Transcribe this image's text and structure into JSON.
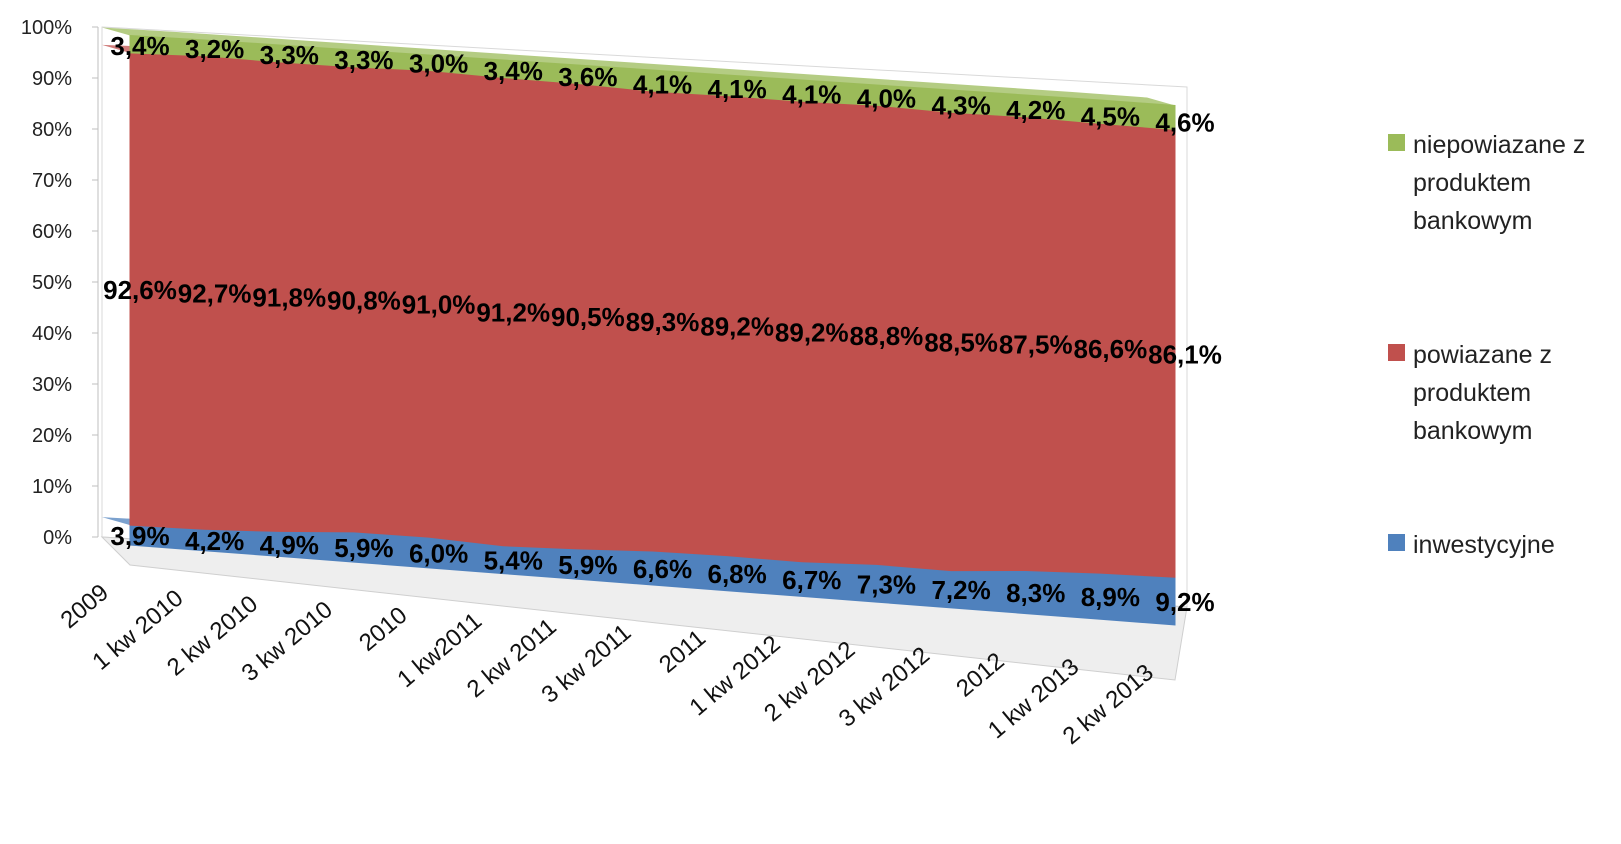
{
  "chart_data": {
    "type": "area",
    "stacked": "percent",
    "categories": [
      "2009",
      "1 kw 2010",
      "2 kw 2010",
      "3 kw 2010",
      "2010",
      "1 kw2011",
      "2 kw 2011",
      "3 kw 2011",
      "2011",
      "1 kw 2012",
      "2 kw 2012",
      "3 kw 2012",
      "2012",
      "1 kw 2013",
      "2 kw 2013"
    ],
    "series": [
      {
        "name": "inwestycyjne",
        "color": "#4f81bd",
        "values": [
          3.9,
          4.2,
          4.9,
          5.9,
          6.0,
          5.4,
          5.9,
          6.6,
          6.8,
          6.7,
          7.3,
          7.2,
          8.3,
          8.9,
          9.2
        ],
        "labels": [
          "3,9%",
          "4,2%",
          "4,9%",
          "5,9%",
          "6,0%",
          "5,4%",
          "5,9%",
          "6,6%",
          "6,8%",
          "6,7%",
          "7,3%",
          "7,2%",
          "8,3%",
          "8,9%",
          "9,2%"
        ]
      },
      {
        "name": "powiazane z produktem bankowym",
        "color": "#c0504d",
        "values": [
          92.6,
          92.7,
          91.8,
          90.8,
          91.0,
          91.2,
          90.5,
          89.3,
          89.2,
          89.2,
          88.8,
          88.5,
          87.5,
          86.6,
          86.1
        ],
        "labels": [
          "92,6%",
          "92,7%",
          "91,8%",
          "90,8%",
          "91,0%",
          "91,2%",
          "90,5%",
          "89,3%",
          "89,2%",
          "89,2%",
          "88,8%",
          "88,5%",
          "87,5%",
          "86,6%",
          "86,1%"
        ]
      },
      {
        "name": "niepowiazane z produktem bankowym",
        "color": "#9bbb59",
        "values": [
          3.4,
          3.2,
          3.3,
          3.3,
          3.0,
          3.4,
          3.6,
          4.1,
          4.1,
          4.1,
          4.0,
          4.3,
          4.2,
          4.5,
          4.6
        ],
        "labels": [
          "3,4%",
          "3,2%",
          "3,3%",
          "3,3%",
          "3,0%",
          "3,4%",
          "3,6%",
          "4,1%",
          "4,1%",
          "4,1%",
          "4,0%",
          "4,3%",
          "4,2%",
          "4,5%",
          "4,6%"
        ]
      }
    ],
    "y_ticks": [
      "0%",
      "10%",
      "20%",
      "30%",
      "40%",
      "50%",
      "60%",
      "70%",
      "80%",
      "90%",
      "100%"
    ],
    "ylim": [
      0,
      100
    ],
    "legend": {
      "position": "right",
      "items": [
        {
          "series": 2,
          "lines": [
            "niepowiazane z",
            "produktem",
            "bankowym"
          ],
          "color": "#9bbb59"
        },
        {
          "series": 1,
          "lines": [
            "powiazane z",
            "produktem",
            "bankowym"
          ],
          "color": "#c0504d"
        },
        {
          "series": 0,
          "lines": [
            "inwestycyjne"
          ],
          "color": "#4f81bd"
        }
      ]
    }
  }
}
